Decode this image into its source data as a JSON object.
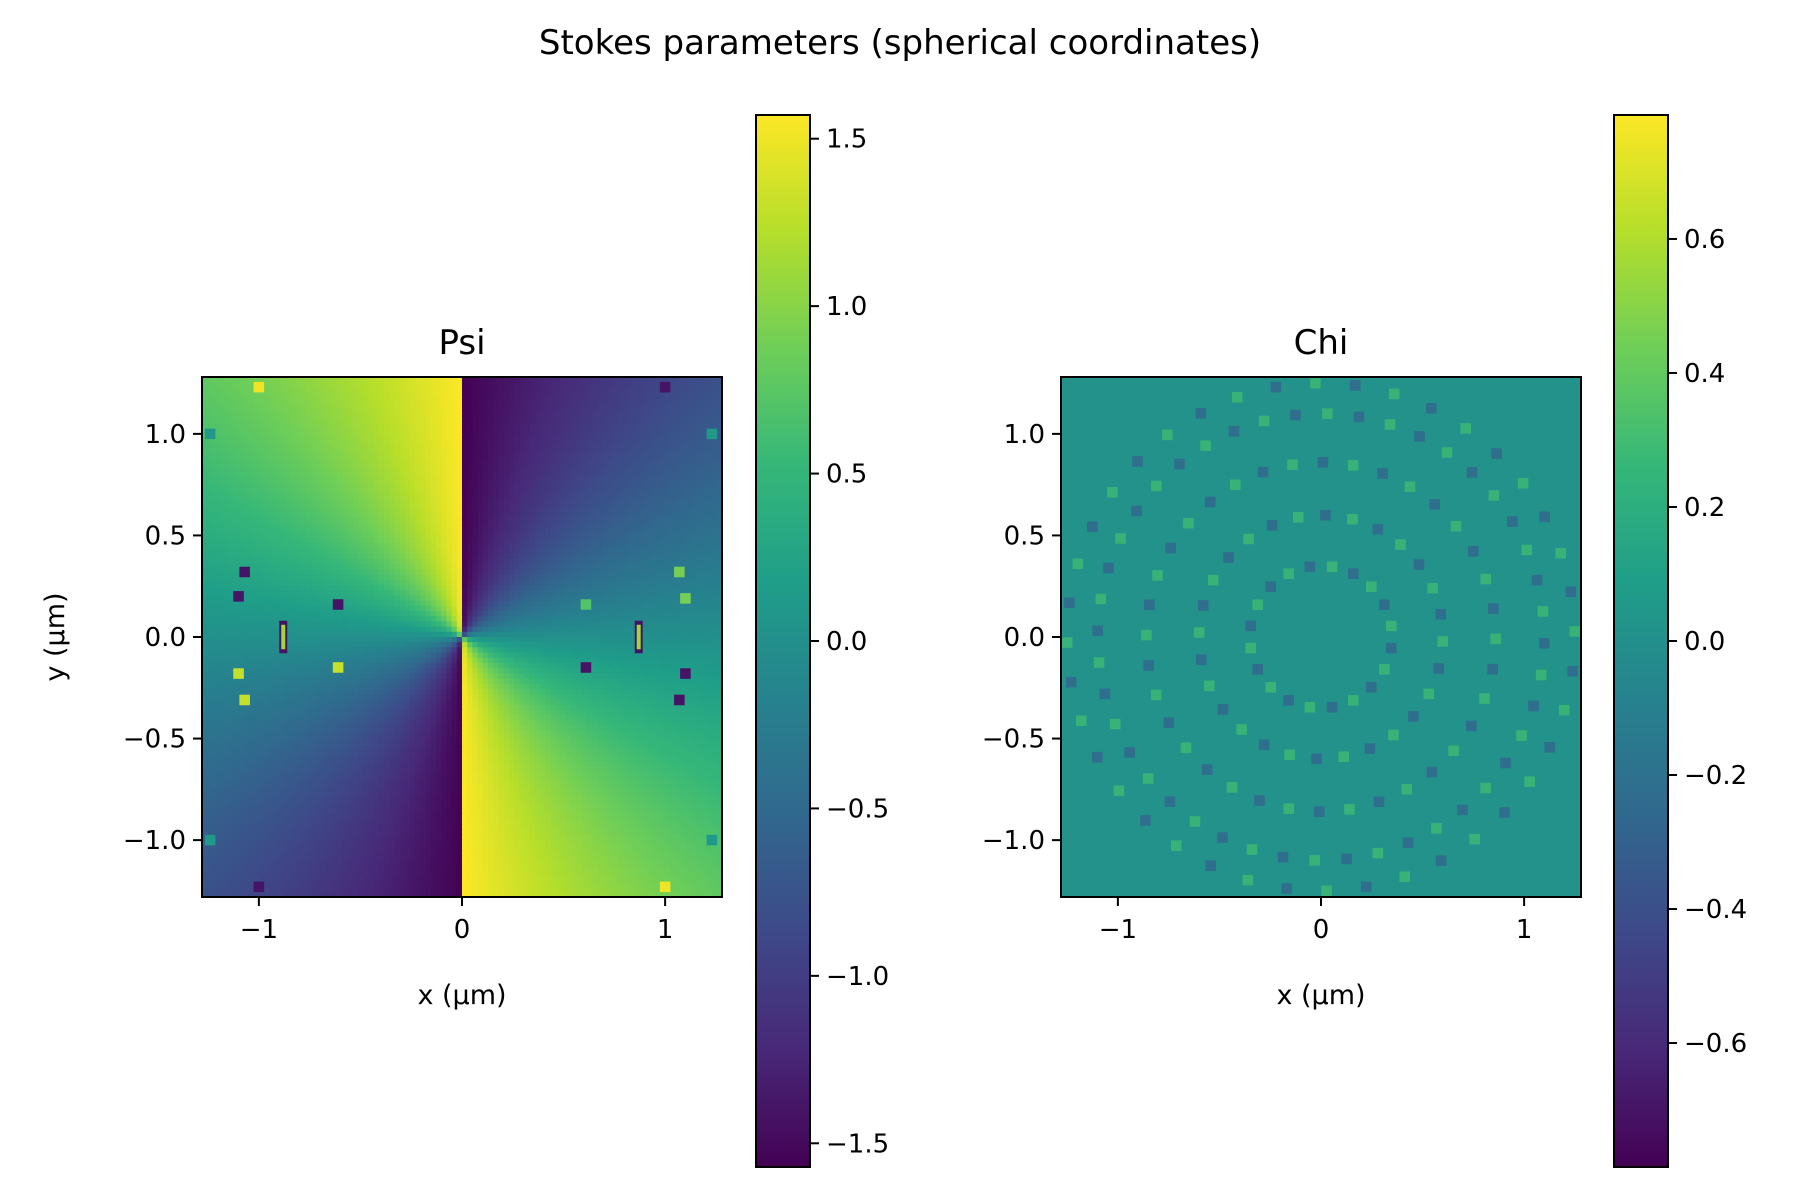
{
  "figure": {
    "suptitle": "Stokes parameters (spherical coordinates)"
  },
  "colors": {
    "colormap": "viridis",
    "viridis_stops": [
      "#440154",
      "#482878",
      "#3e4989",
      "#31688e",
      "#26828e",
      "#1f9e89",
      "#35b779",
      "#6ece58",
      "#b5de2b",
      "#fde725"
    ]
  },
  "chart_data": [
    {
      "type": "heatmap",
      "title": "Psi",
      "xlabel": "x (µm)",
      "ylabel": "y (µm)",
      "xlim": [
        -1.28,
        1.28
      ],
      "ylim": [
        -1.28,
        1.28
      ],
      "xticks": [
        -1,
        0,
        1
      ],
      "xtick_labels": [
        "−1",
        "0",
        "1"
      ],
      "yticks": [
        -1.0,
        -0.5,
        0.0,
        0.5,
        1.0
      ],
      "ytick_labels": [
        "−1.0",
        "−0.5",
        "0.0",
        "0.5",
        "1.0"
      ],
      "colormap": "viridis",
      "vmin": -1.5708,
      "vmax": 1.5708,
      "colorbar_ticks": [
        -1.5,
        -1.0,
        -0.5,
        0.0,
        0.5,
        1.0,
        1.5
      ],
      "colorbar_tick_labels": [
        "−1.5",
        "−1.0",
        "−0.5",
        "0.0",
        "0.5",
        "1.0",
        "1.5"
      ],
      "field": "psi = -atan(y/x); value jumps from +π/2 to −π/2 across the negative-x side of y = 0 and from −π/2 to +π/2 on the positive-x side",
      "grid_step": 0.052,
      "singular_points": [
        {
          "x": -1.1,
          "y": 0.2,
          "v": -1.4
        },
        {
          "x": -1.07,
          "y": 0.32,
          "v": -1.4
        },
        {
          "x": -0.61,
          "y": 0.16,
          "v": -1.4
        },
        {
          "x": -1.1,
          "y": -0.18,
          "v": 1.3
        },
        {
          "x": -1.07,
          "y": -0.31,
          "v": 1.3
        },
        {
          "x": -0.61,
          "y": -0.15,
          "v": 1.3
        },
        {
          "x": 0.61,
          "y": 0.16,
          "v": 0.7
        },
        {
          "x": 1.07,
          "y": 0.32,
          "v": 0.9
        },
        {
          "x": 1.1,
          "y": 0.19,
          "v": 0.9
        },
        {
          "x": 0.61,
          "y": -0.15,
          "v": -1.4
        },
        {
          "x": 1.07,
          "y": -0.31,
          "v": -1.4
        },
        {
          "x": 1.1,
          "y": -0.18,
          "v": -1.4
        },
        {
          "x": -1.24,
          "y": 1.0,
          "v": 0.1
        },
        {
          "x": 1.23,
          "y": 1.0,
          "v": 0.1
        },
        {
          "x": -1.24,
          "y": -1.0,
          "v": 0.1
        },
        {
          "x": 1.23,
          "y": -1.0,
          "v": 0.1
        },
        {
          "x": -1.0,
          "y": 1.23,
          "v": 1.5
        },
        {
          "x": 1.0,
          "y": 1.23,
          "v": -1.4
        },
        {
          "x": -1.0,
          "y": -1.23,
          "v": -1.4
        },
        {
          "x": 1.0,
          "y": -1.23,
          "v": 1.5
        }
      ],
      "cut_bars": [
        {
          "x": -0.88,
          "y0": -0.08,
          "y1": 0.08
        },
        {
          "x": 0.87,
          "y0": -0.08,
          "y1": 0.08
        }
      ]
    },
    {
      "type": "heatmap",
      "title": "Chi",
      "xlabel": "x (µm)",
      "ylabel": "",
      "xlim": [
        -1.28,
        1.28
      ],
      "ylim": [
        -1.28,
        1.28
      ],
      "xticks": [
        -1,
        0,
        1
      ],
      "xtick_labels": [
        "−1",
        "0",
        "1"
      ],
      "yticks": [
        -1.0,
        -0.5,
        0.0,
        0.5,
        1.0
      ],
      "ytick_labels": [
        "−1.0",
        "−0.5",
        "0.0",
        "0.5",
        "1.0"
      ],
      "colormap": "viridis",
      "vmin": -0.785,
      "vmax": 0.785,
      "colorbar_ticks": [
        -0.6,
        -0.4,
        -0.2,
        0.0,
        0.2,
        0.4,
        0.6
      ],
      "colorbar_tick_labels": [
        "−0.6",
        "−0.4",
        "−0.2",
        "0.0",
        "0.2",
        "0.4",
        "0.6"
      ],
      "field": "chi ≈ 0.01 everywhere (uniform teal), with sparse pixel-sized dots of ±0.3 lying on concentric rings",
      "background_value": 0.01,
      "grid_step": 0.052,
      "rings": [
        0.35,
        0.6,
        0.86,
        1.1,
        1.25
      ],
      "ring_dot_value": 0.3,
      "ring_dot_count": [
        20,
        28,
        36,
        44,
        40
      ]
    }
  ]
}
